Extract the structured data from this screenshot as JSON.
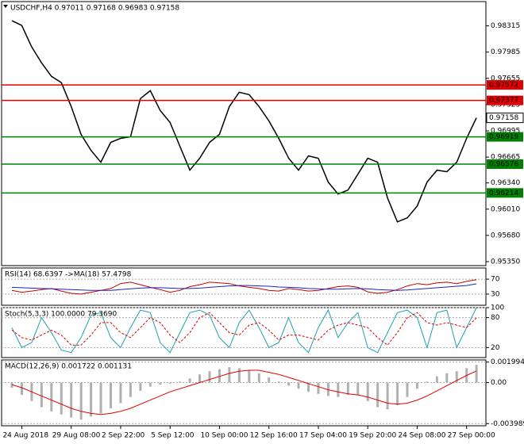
{
  "chart_data": [
    {
      "type": "line",
      "title": "USDCHF,H4  0.97011 0.97168 0.96983 0.97158",
      "categories": [
        null,
        "24 Aug 2018",
        null,
        null,
        null,
        null,
        "29 Aug 08:00",
        null,
        null,
        null,
        null,
        "2 Sep 22:00",
        null,
        null,
        null,
        null,
        "5 Sep 12:00",
        null,
        null,
        null,
        null,
        "10 Sep 00:00",
        null,
        null,
        null,
        null,
        "12 Sep 16:00",
        null,
        null,
        null,
        null,
        "17 Sep 04:00",
        null,
        null,
        null,
        null,
        "19 Sep 20:00",
        null,
        null,
        null,
        null,
        "24 Sep 08:00",
        null,
        null,
        null,
        null,
        "27 Sep 00:00",
        null
      ],
      "series": [
        {
          "color": "#000000",
          "values": [
            0.9838,
            0.9832,
            0.9805,
            0.9785,
            0.9768,
            0.976,
            0.973,
            0.9695,
            0.9675,
            0.966,
            0.9685,
            0.969,
            0.9692,
            0.974,
            0.975,
            0.9725,
            0.971,
            0.968,
            0.965,
            0.9665,
            0.9685,
            0.9695,
            0.973,
            0.9748,
            0.9745,
            0.973,
            0.9712,
            0.969,
            0.9665,
            0.965,
            0.9668,
            0.9665,
            0.9635,
            0.962,
            0.9625,
            0.9645,
            0.9665,
            0.966,
            0.9615,
            0.9585,
            0.959,
            0.9605,
            0.9635,
            0.965,
            0.9648,
            0.966,
            0.969,
            0.97158
          ]
        }
      ],
      "levels": [
        {
          "value": 0.97572,
          "color": "#e00000"
        },
        {
          "value": 0.97377,
          "color": "#e00000"
        },
        {
          "value": 0.97158,
          "color": "#ffffff"
        },
        {
          "value": 0.96919,
          "color": "#008000"
        },
        {
          "value": 0.96576,
          "color": "#008000"
        },
        {
          "value": 0.96214,
          "color": "#008000"
        }
      ],
      "ylim": [
        0.953,
        0.9862
      ],
      "yticks": [
        0.98315,
        0.97985,
        0.97655,
        0.97325,
        0.96995,
        0.96665,
        {
          "value": 0.9634,
          "label": "0.96340"
        },
        {
          "value": 0.9601,
          "label": "0.96010"
        },
        {
          "value": 0.9568,
          "label": "0.95680"
        },
        {
          "value": 0.9535,
          "label": "0.95350"
        }
      ]
    },
    {
      "type": "line",
      "title": "RSI(14) 68.6397  ->MA(18) 57.4798",
      "series": [
        {
          "color": "#c00000",
          "values": [
            40,
            35,
            38,
            42,
            45,
            38,
            32,
            30,
            35,
            40,
            45,
            58,
            62,
            55,
            48,
            42,
            35,
            40,
            50,
            55,
            62,
            60,
            58,
            52,
            48,
            45,
            40,
            38,
            45,
            42,
            38,
            40,
            45,
            50,
            52,
            48,
            36,
            32,
            35,
            42,
            52,
            58,
            55,
            60,
            62,
            58,
            64,
            68.6397
          ]
        },
        {
          "color": "#2020c0",
          "values": [
            48,
            47,
            46,
            45,
            44,
            43,
            42,
            41,
            40,
            40,
            40,
            42,
            44,
            46,
            47,
            47,
            46,
            45,
            45,
            46,
            48,
            50,
            52,
            53,
            53,
            52,
            51,
            49,
            48,
            47,
            45,
            44,
            43,
            43,
            44,
            45,
            44,
            42,
            41,
            40,
            41,
            43,
            45,
            47,
            49,
            51,
            53,
            57.4798
          ]
        }
      ],
      "ylim": [
        0,
        100
      ],
      "yticks": [
        70,
        30
      ]
    },
    {
      "type": "line",
      "title": "Stoch(5,3,3) 100.0000 79.3690",
      "series": [
        {
          "color": "#20a0b0",
          "values": [
            60,
            20,
            30,
            80,
            50,
            15,
            10,
            40,
            85,
            90,
            40,
            20,
            60,
            95,
            90,
            30,
            10,
            50,
            90,
            95,
            85,
            40,
            20,
            70,
            95,
            60,
            20,
            30,
            80,
            30,
            10,
            60,
            95,
            40,
            70,
            90,
            20,
            10,
            50,
            90,
            95,
            80,
            20,
            90,
            95,
            20,
            60,
            100
          ]
        },
        {
          "color": "#e00000",
          "dash": true,
          "values": [
            55,
            40,
            35,
            45,
            55,
            45,
            25,
            25,
            45,
            70,
            70,
            50,
            40,
            60,
            80,
            70,
            45,
            30,
            50,
            80,
            90,
            70,
            50,
            45,
            65,
            70,
            55,
            35,
            45,
            45,
            40,
            35,
            55,
            65,
            70,
            65,
            60,
            40,
            25,
            50,
            80,
            90,
            70,
            65,
            70,
            65,
            60,
            79.369
          ]
        }
      ],
      "ylim": [
        0,
        100
      ],
      "yticks": [
        100,
        80,
        20
      ]
    },
    {
      "type": "bar",
      "title": "MACD(12,26,9) 0.001722 0.001131",
      "series": [
        {
          "color": "#b0b0b0",
          "values": [
            -0.0005,
            -0.0012,
            -0.0018,
            -0.0024,
            -0.0028,
            -0.0031,
            -0.0034,
            -0.0036,
            -0.0033,
            -0.003,
            -0.0025,
            -0.002,
            -0.0014,
            -0.0008,
            -0.0004,
            -0.0002,
            -0.0001,
            0.0001,
            0.0004,
            0.0008,
            0.0011,
            0.0013,
            0.0015,
            0.0014,
            0.0012,
            0.0009,
            0.0005,
            0.0001,
            -0.0003,
            -0.0006,
            -0.0009,
            -0.0011,
            -0.0013,
            -0.0014,
            -0.0012,
            -0.0012,
            -0.0018,
            -0.0024,
            -0.0026,
            -0.0022,
            -0.0014,
            -0.0006,
            0.0001,
            0.0006,
            0.0009,
            0.0011,
            0.0014,
            0.001722
          ]
        },
        {
          "color": "#e00000",
          "values": [
            -0.0002,
            -0.0005,
            -0.0009,
            -0.0013,
            -0.0017,
            -0.0021,
            -0.0025,
            -0.0028,
            -0.003,
            -0.0031,
            -0.003,
            -0.0028,
            -0.0025,
            -0.0021,
            -0.0017,
            -0.0013,
            -0.0009,
            -0.0006,
            -0.0003,
            0.0,
            0.0003,
            0.0006,
            0.0009,
            0.0011,
            0.0012,
            0.0012,
            0.001,
            0.0008,
            0.0005,
            0.0002,
            -0.0001,
            -0.0004,
            -0.0007,
            -0.0009,
            -0.0011,
            -0.0012,
            -0.0014,
            -0.0017,
            -0.002,
            -0.0021,
            -0.002,
            -0.0017,
            -0.0013,
            -0.0008,
            -0.0003,
            0.0002,
            0.0007,
            0.001131
          ]
        }
      ],
      "ylim": [
        -0.0042,
        0.0022
      ],
      "yticks": [
        0.001994,
        {
          "value": 0,
          "label": "0.00"
        },
        -0.003989
      ]
    }
  ]
}
